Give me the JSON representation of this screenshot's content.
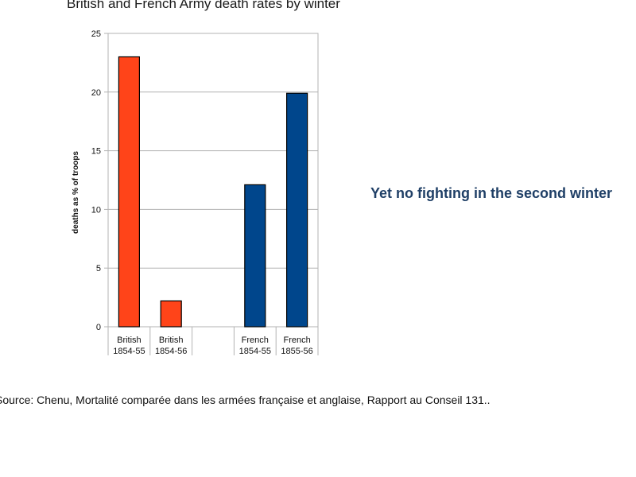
{
  "chart_data": {
    "type": "bar",
    "title": "British and French Army death rates by winter",
    "ylabel": "deaths as % of troops",
    "xlabel": "",
    "ylim": [
      0,
      25
    ],
    "yticks": [
      0,
      5,
      10,
      15,
      20,
      25
    ],
    "grid": true,
    "categories": [
      [
        "British",
        "1854-55"
      ],
      [
        "British",
        "1854-56"
      ],
      [
        "",
        ""
      ],
      [
        "French",
        "1854-55"
      ],
      [
        "French",
        "1855-56"
      ]
    ],
    "values": [
      23,
      2.2,
      null,
      12.1,
      19.9
    ],
    "colors": [
      "#ff4419",
      "#ff4419",
      "",
      "#00468c",
      "#00468c"
    ]
  },
  "annotation": "Yet no fighting in the second winter",
  "source": "Source: Chenu, Mortalité comparée dans les armées française et anglaise, Rapport au Conseil 131.."
}
